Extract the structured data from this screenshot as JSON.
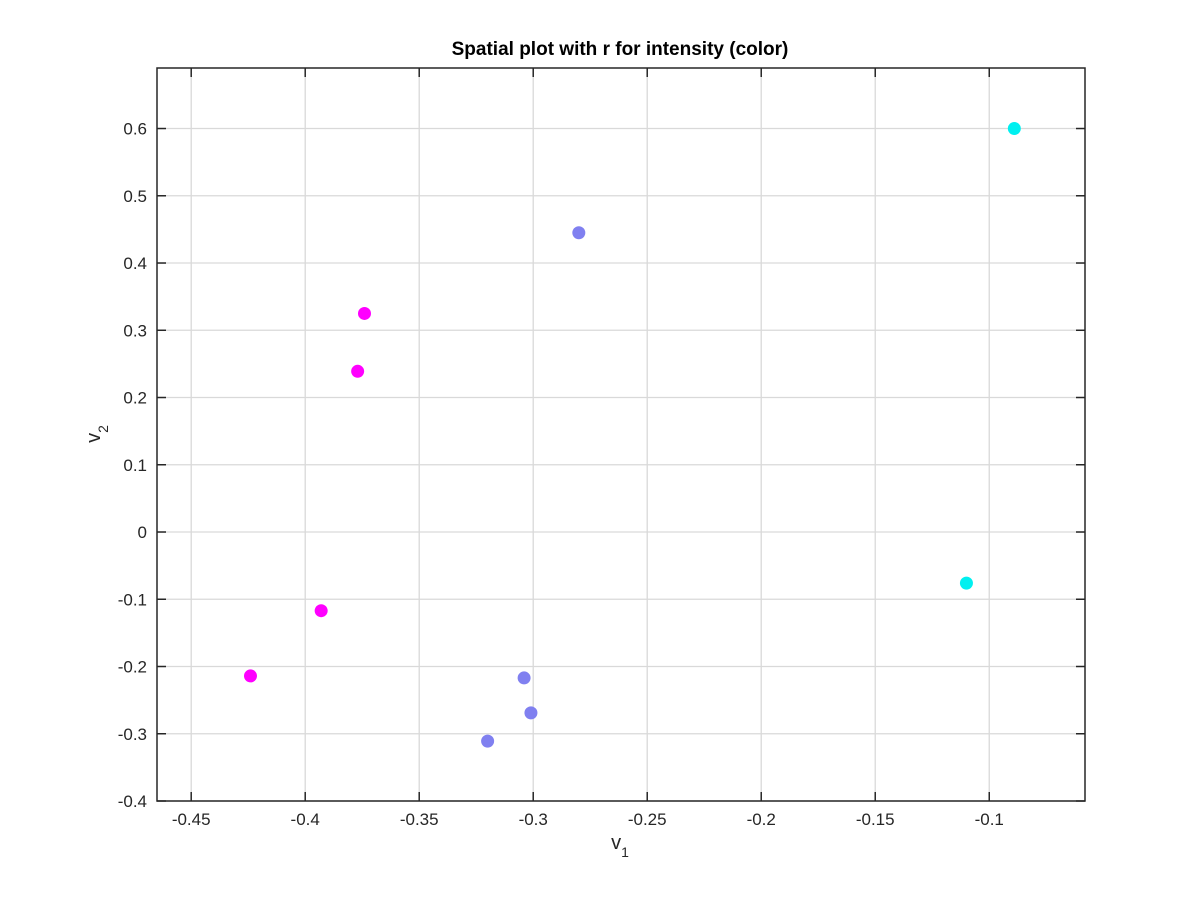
{
  "chart_data": {
    "type": "scatter",
    "title": "Spatial plot with r for intensity (color)",
    "xlabel": {
      "main": "v",
      "sub": "1"
    },
    "ylabel": {
      "main": "v",
      "sub": "2"
    },
    "xlim": [
      -0.465,
      -0.058
    ],
    "ylim": [
      -0.4,
      0.69
    ],
    "x_ticks": [
      -0.45,
      -0.4,
      -0.35,
      -0.3,
      -0.25,
      -0.2,
      -0.15,
      -0.1
    ],
    "x_tick_labels": [
      "-0.45",
      "-0.4",
      "-0.35",
      "-0.3",
      "-0.25",
      "-0.2",
      "-0.15",
      "-0.1"
    ],
    "y_ticks": [
      -0.4,
      -0.3,
      -0.2,
      -0.1,
      0,
      0.1,
      0.2,
      0.3,
      0.4,
      0.5,
      0.6
    ],
    "y_tick_labels": [
      "-0.4",
      "-0.3",
      "-0.2",
      "-0.1",
      "0",
      "0.1",
      "0.2",
      "0.3",
      "0.4",
      "0.5",
      "0.6"
    ],
    "grid": true,
    "colors": {
      "magenta": "#ff00ff",
      "periwinkle": "#8080f0",
      "cyan": "#00f0f0"
    },
    "points": [
      {
        "x": -0.424,
        "y": -0.214,
        "color": "#ff00ff"
      },
      {
        "x": -0.393,
        "y": -0.117,
        "color": "#ff00ff"
      },
      {
        "x": -0.377,
        "y": 0.239,
        "color": "#ff00ff"
      },
      {
        "x": -0.374,
        "y": 0.325,
        "color": "#ff00ff"
      },
      {
        "x": -0.32,
        "y": -0.311,
        "color": "#8080f0"
      },
      {
        "x": -0.304,
        "y": -0.217,
        "color": "#8080f0"
      },
      {
        "x": -0.301,
        "y": -0.269,
        "color": "#8080f0"
      },
      {
        "x": -0.28,
        "y": 0.445,
        "color": "#8080f0"
      },
      {
        "x": -0.11,
        "y": -0.076,
        "color": "#00f0f0"
      },
      {
        "x": -0.089,
        "y": 0.6,
        "color": "#00f0f0"
      }
    ]
  }
}
